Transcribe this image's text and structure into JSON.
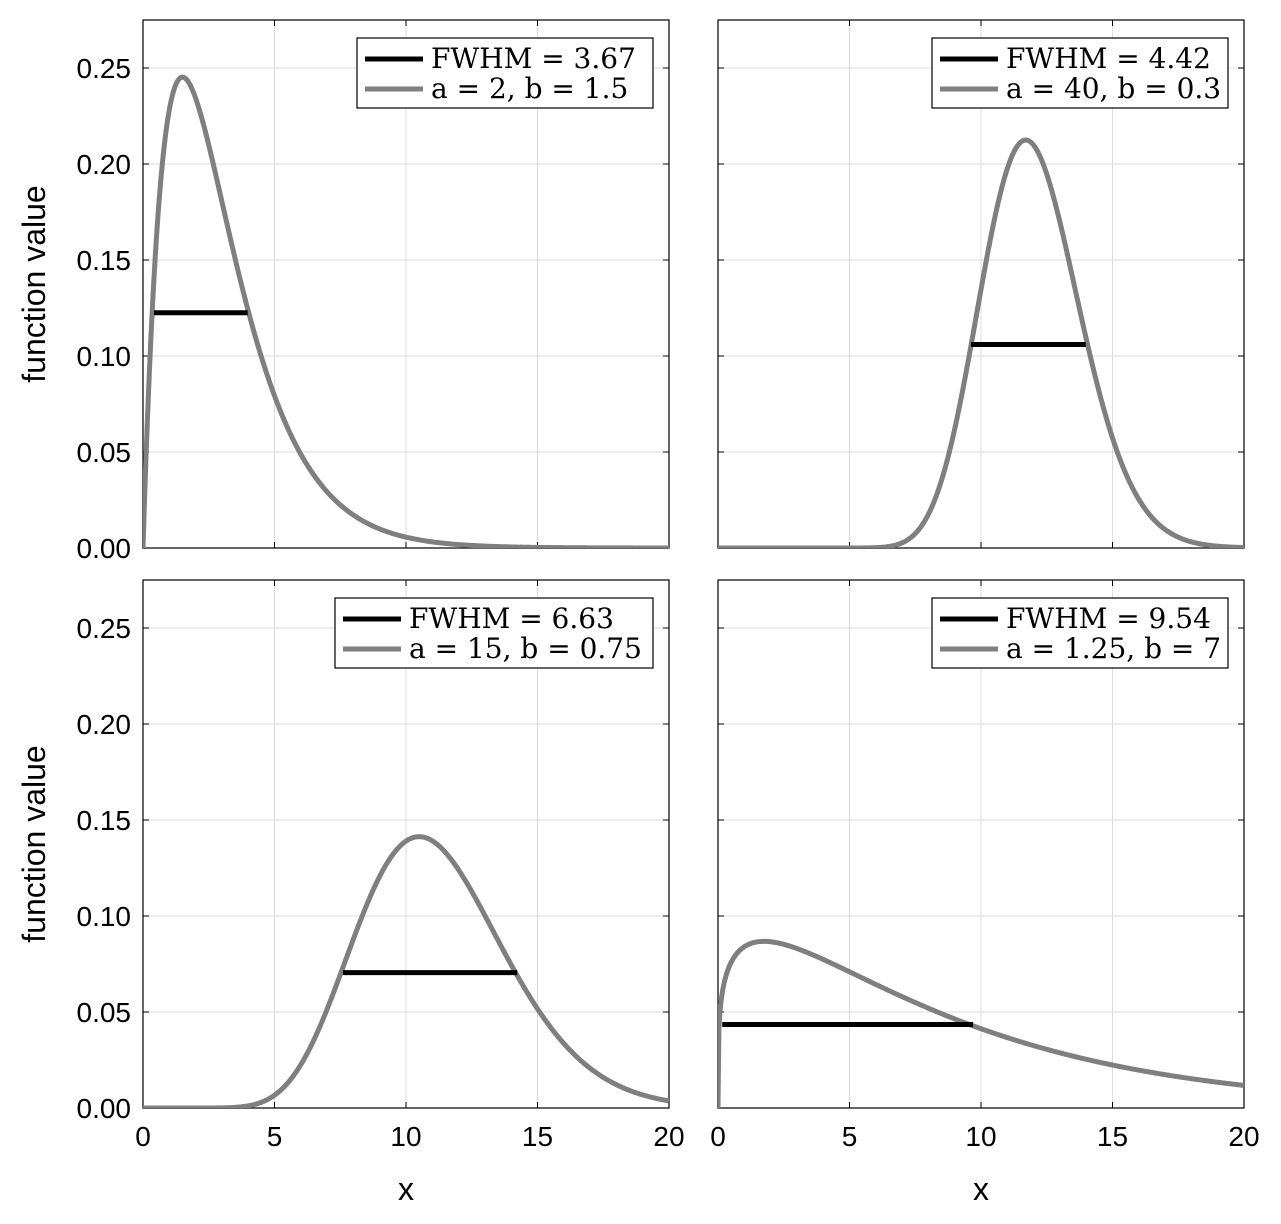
{
  "figure": {
    "ylabel": "function value",
    "xlabel": "x"
  },
  "colors": {
    "curve": "#7f7f7f",
    "fwhm": "#000000",
    "grid": "#dcdcdc"
  },
  "chart_data": [
    {
      "type": "line",
      "panel": "top-left",
      "a": 2,
      "b": 1.5,
      "fwhm_value": 3.67,
      "fwhm_x": [
        0.42,
        3.98
      ],
      "fwhm_y": 0.1225,
      "legend": [
        "FWHM = 3.67",
        "a = 2, b = 1.5"
      ],
      "legend_position": "top-right",
      "xlim": [
        0,
        20
      ],
      "ylim": [
        0,
        0.275
      ],
      "xticks": [
        "0",
        "5",
        "10",
        "15",
        "20"
      ],
      "yticks": [
        "0.00",
        "0.05",
        "0.10",
        "0.15",
        "0.20",
        "0.25"
      ],
      "xlabel": "",
      "ylabel": "function value",
      "grid": true
    },
    {
      "type": "line",
      "panel": "top-right",
      "a": 40,
      "b": 0.3,
      "fwhm_value": 4.42,
      "fwhm_x": [
        9.62,
        13.98
      ],
      "fwhm_y": 0.106,
      "legend": [
        "FWHM = 4.42",
        "a = 40, b = 0.3"
      ],
      "legend_position": "top-right",
      "xlim": [
        0,
        20
      ],
      "ylim": [
        0,
        0.275
      ],
      "xticks": [
        "0",
        "5",
        "10",
        "15",
        "20"
      ],
      "yticks": [
        "0.00",
        "0.05",
        "0.10",
        "0.15",
        "0.20",
        "0.25"
      ],
      "xlabel": "",
      "ylabel": "",
      "grid": true
    },
    {
      "type": "line",
      "panel": "bottom-left",
      "a": 15,
      "b": 0.75,
      "fwhm_value": 6.63,
      "fwhm_x": [
        7.6,
        14.23
      ],
      "fwhm_y": 0.0705,
      "legend": [
        "FWHM = 6.63",
        "a = 15, b = 0.75"
      ],
      "legend_position": "top-right",
      "xlim": [
        0,
        20
      ],
      "ylim": [
        0,
        0.275
      ],
      "xticks": [
        "0",
        "5",
        "10",
        "15",
        "20"
      ],
      "yticks": [
        "0.00",
        "0.05",
        "0.10",
        "0.15",
        "0.20",
        "0.25"
      ],
      "xlabel": "x",
      "ylabel": "function value",
      "grid": true
    },
    {
      "type": "line",
      "panel": "bottom-right",
      "a": 1.25,
      "b": 7,
      "fwhm_value": 9.54,
      "fwhm_x": [
        0.16,
        9.7
      ],
      "fwhm_y": 0.0435,
      "legend": [
        "FWHM = 9.54",
        "a = 1.25, b = 7"
      ],
      "legend_position": "top-right",
      "xlim": [
        0,
        20
      ],
      "ylim": [
        0,
        0.275
      ],
      "xticks": [
        "0",
        "5",
        "10",
        "15",
        "20"
      ],
      "yticks": [
        "0.00",
        "0.05",
        "0.10",
        "0.15",
        "0.20",
        "0.25"
      ],
      "xlabel": "x",
      "ylabel": "",
      "grid": true
    }
  ]
}
